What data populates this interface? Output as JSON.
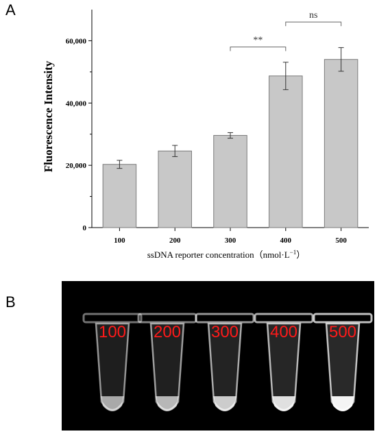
{
  "panel_labels": {
    "a": "A",
    "b": "B"
  },
  "chart_data": {
    "type": "bar",
    "categories": [
      "100",
      "200",
      "300",
      "400",
      "500"
    ],
    "values": [
      20300,
      24600,
      29600,
      48700,
      54000
    ],
    "errors": [
      1300,
      1800,
      900,
      4400,
      3800
    ],
    "xlabel": "ssDNA reporter concentration（nmol·L",
    "xlabel_sup": "−1",
    "xlabel_close": "）",
    "ylabel": "Fluorescence Intensity",
    "ylim": [
      0,
      70000
    ],
    "yticks": [
      0,
      20000,
      40000,
      60000
    ],
    "ytick_labels": [
      "0",
      "20,000",
      "40,000",
      "60,000"
    ],
    "bar_color": "#c8c8c8",
    "bar_edge": "#7a7a7a",
    "grid": false,
    "annotations": [
      {
        "from": "300",
        "to": "400",
        "text": "**",
        "y": 58000
      },
      {
        "from": "400",
        "to": "500",
        "text": "ns",
        "y": 66000
      }
    ]
  },
  "photo": {
    "tube_labels": [
      "100",
      "200",
      "300",
      "400",
      "500"
    ],
    "tube_brightness": [
      0.45,
      0.55,
      0.7,
      0.85,
      1.0
    ],
    "label_color": "#ff1a1a"
  }
}
